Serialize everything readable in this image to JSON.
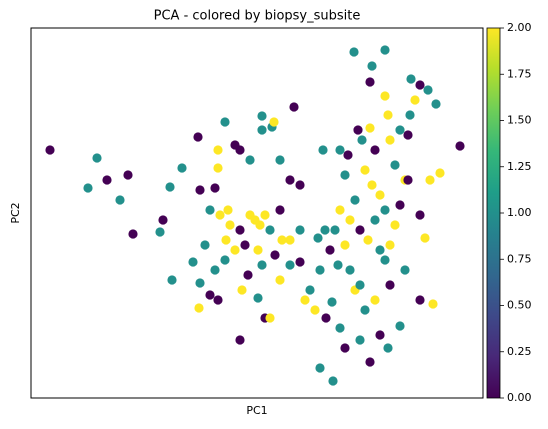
{
  "chart_data": {
    "type": "scatter",
    "title": "PCA - colored by biopsy_subsite",
    "xlabel": "PC1",
    "ylabel": "PC2",
    "x": [
      19,
      66,
      57,
      76,
      89,
      97,
      102,
      129,
      132,
      139,
      151,
      167,
      194,
      231,
      263,
      241,
      243,
      219,
      209,
      187,
      169,
      179,
      189,
      199,
      209,
      219,
      224,
      229,
      234,
      239,
      249,
      259,
      269,
      214,
      204,
      194,
      184,
      169,
      179,
      211,
      209,
      234,
      239,
      227,
      249,
      259,
      269,
      274,
      279,
      287,
      294,
      299,
      289,
      295,
      301,
      309,
      314,
      302,
      289,
      329,
      339,
      357,
      369,
      349,
      334,
      324,
      319,
      314,
      319,
      324,
      314,
      317,
      327,
      331,
      339,
      344,
      334,
      341,
      349,
      354,
      344,
      337,
      349,
      354,
      359,
      364,
      369,
      374,
      364,
      359,
      369,
      379,
      384,
      377,
      354,
      323,
      341,
      339,
      354,
      357,
      380,
      397,
      405,
      389,
      399,
      409,
      429,
      389,
      394,
      374,
      389,
      402,
      377,
      329,
      307,
      284,
      162,
      141,
      168,
      187,
      197,
      184,
      187,
      204,
      231,
      249,
      259,
      269,
      227,
      244,
      251,
      231,
      217,
      195,
      174,
      309,
      304,
      329,
      344,
      359,
      309,
      292
    ],
    "y": [
      248,
      240,
      210,
      218,
      198,
      223,
      164,
      166,
      178,
      211,
      230,
      261,
      276,
      282,
      291,
      271,
      276,
      238,
      248,
      230,
      208,
      188,
      183,
      173,
      168,
      183,
      178,
      173,
      183,
      168,
      188,
      158,
      168,
      153,
      148,
      138,
      128,
      115,
      103,
      108,
      58,
      80,
      80,
      100,
      118,
      133,
      136,
      98,
      108,
      160,
      168,
      148,
      128,
      80,
      96,
      70,
      50,
      17,
      30,
      58,
      36,
      50,
      72,
      63,
      88,
      108,
      128,
      153,
      178,
      198,
      223,
      243,
      268,
      258,
      270,
      248,
      228,
      213,
      203,
      188,
      178,
      158,
      148,
      138,
      153,
      173,
      193,
      218,
      233,
      258,
      268,
      283,
      298,
      263,
      348,
      346,
      332,
      316,
      302,
      283,
      319,
      308,
      294,
      313,
      218,
      225,
      252,
      183,
      160,
      128,
      98,
      94,
      218,
      168,
      133,
      88,
      136,
      118,
      90,
      98,
      188,
      210,
      248,
      253,
      268,
      238,
      218,
      213,
      148,
      143,
      158,
      133,
      123,
      158,
      153,
      188,
      168,
      113,
      98,
      113,
      248,
      248
    ],
    "values": [
      0,
      1,
      1,
      0,
      1,
      0,
      0,
      1,
      0,
      1,
      1,
      0,
      1,
      1,
      0,
      1,
      2,
      1,
      0,
      2,
      0,
      1,
      2,
      2,
      0,
      2,
      2,
      2,
      2,
      1,
      0,
      2,
      1,
      0,
      2,
      1,
      1,
      1,
      0,
      2,
      0,
      0,
      2,
      1,
      2,
      1,
      0,
      2,
      1,
      1,
      1,
      0,
      1,
      0,
      1,
      1,
      0,
      1,
      1,
      1,
      0,
      1,
      1,
      0,
      1,
      2,
      1,
      2,
      2,
      1,
      1,
      0,
      0,
      1,
      2,
      0,
      2,
      2,
      2,
      1,
      1,
      2,
      1,
      1,
      2,
      2,
      0,
      2,
      1,
      2,
      1,
      1,
      2,
      0,
      1,
      1,
      1,
      0,
      2,
      2,
      1,
      1,
      1,
      0,
      2,
      2,
      0,
      0,
      2,
      1,
      0,
      2,
      0,
      0,
      1,
      2,
      1,
      1,
      2,
      0,
      2,
      0,
      2,
      0,
      1,
      1,
      0,
      0,
      2,
      0,
      2,
      1,
      0,
      2,
      1,
      2,
      1,
      1,
      2,
      0,
      1,
      1
    ],
    "xlim": [
      0,
      452
    ],
    "ylim": [
      0,
      370
    ],
    "colorscale": [
      "#440154",
      "#482878",
      "#3e4989",
      "#31688e",
      "#26828e",
      "#1f9e89",
      "#35b779",
      "#6ece58",
      "#b5de2b",
      "#fde725"
    ],
    "clim": [
      0,
      2
    ],
    "cticks": [
      {
        "value": 0,
        "label": "0.00"
      },
      {
        "value": 0.25,
        "label": "0.25"
      },
      {
        "value": 0.5,
        "label": "0.50"
      },
      {
        "value": 0.75,
        "label": "0.75"
      },
      {
        "value": 1,
        "label": "1.00"
      },
      {
        "value": 1.25,
        "label": "1.25"
      },
      {
        "value": 1.5,
        "label": "1.50"
      },
      {
        "value": 1.75,
        "label": "1.75"
      },
      {
        "value": 2,
        "label": "2.00"
      }
    ]
  }
}
